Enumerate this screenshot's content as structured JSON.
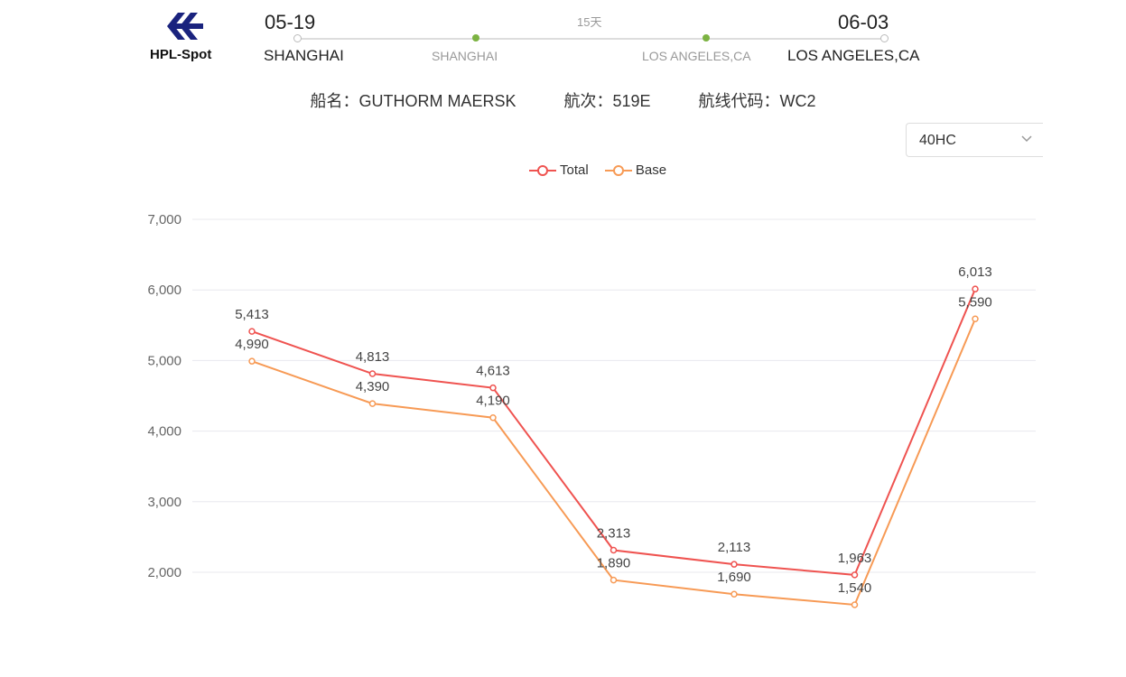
{
  "brand": {
    "logo_text": "HPL-Spot"
  },
  "route": {
    "depart_date": "05-19",
    "arrive_date": "06-03",
    "duration": "15天",
    "origin": "SHANGHAI",
    "origin_terminal": "SHANGHAI",
    "dest_terminal": "LOS ANGELES,CA",
    "destination": "LOS ANGELES,CA"
  },
  "vessel": {
    "ship_label": "船名：",
    "ship_name": "GUTHORM MAERSK",
    "voyage_label": "航次：",
    "voyage": "519E",
    "service_label": "航线代码：",
    "service": "WC2"
  },
  "container_select": {
    "selected": "40HC"
  },
  "colors": {
    "total": "#ef5350",
    "base": "#f79a55",
    "accent": "#7cb342",
    "brand": "#1a237e"
  },
  "chart_data": {
    "type": "line",
    "categories": [
      "",
      "",
      "",
      "",
      "",
      "",
      ""
    ],
    "series": [
      {
        "name": "Total",
        "values": [
          5413,
          4813,
          4613,
          2313,
          2113,
          1963,
          6013
        ]
      },
      {
        "name": "Base",
        "values": [
          4990,
          4390,
          4190,
          1890,
          1690,
          1540,
          5590
        ]
      }
    ],
    "value_labels": {
      "Total": [
        "5,413",
        "4,813",
        "4,613",
        "2,313",
        "2,113",
        "1,963",
        "6,013"
      ],
      "Base": [
        "4,990",
        "4,390",
        "4,190",
        "1,890",
        "1,690",
        "1,540",
        "5,590"
      ]
    },
    "y_ticks": [
      "2,000",
      "3,000",
      "4,000",
      "5,000",
      "6,000",
      "7,000"
    ],
    "y_tick_values": [
      2000,
      3000,
      4000,
      5000,
      6000,
      7000
    ],
    "grid": true,
    "legend_position": "top-center"
  }
}
